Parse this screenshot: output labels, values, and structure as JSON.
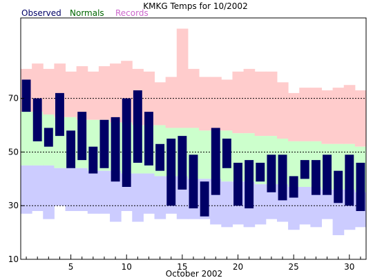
{
  "chart_data": {
    "type": "bar",
    "title": "KMKG Temps for 10/2002",
    "xlabel": "October 2002",
    "ylabel": "",
    "ylim": [
      10,
      100
    ],
    "xlim": [
      0.5,
      31.5
    ],
    "yticks": [
      10,
      30,
      50,
      70
    ],
    "xticks": [
      5,
      10,
      15,
      20,
      25,
      30
    ],
    "grid": "dashed horizontal at 30, 50, 70",
    "legend_placement": "top-left",
    "legend": [
      {
        "name": "Observed",
        "color": "#000066"
      },
      {
        "name": "Normals",
        "color": "#006600"
      },
      {
        "name": "Records",
        "color": "#cc66cc"
      }
    ],
    "colors": {
      "record_band": "#ffcccc",
      "normal_band": "#ccffcc",
      "low_band": "#ccccff",
      "observed_bar": "#000066",
      "grid": "#000000",
      "frame": "#000000"
    },
    "days": [
      1,
      2,
      3,
      4,
      5,
      6,
      7,
      8,
      9,
      10,
      11,
      12,
      13,
      14,
      15,
      16,
      17,
      18,
      19,
      20,
      21,
      22,
      23,
      24,
      25,
      26,
      27,
      28,
      29,
      30,
      31
    ],
    "record_high": [
      81,
      83,
      81,
      83,
      80,
      82,
      80,
      82,
      83,
      84,
      81,
      80,
      76,
      78,
      96,
      81,
      78,
      78,
      77,
      80,
      81,
      80,
      80,
      76,
      72,
      74,
      74,
      73,
      74,
      75,
      73
    ],
    "normal_high": [
      65,
      65,
      64,
      63,
      63,
      62,
      62,
      62,
      61,
      61,
      60,
      60,
      60,
      59,
      59,
      59,
      58,
      58,
      58,
      57,
      57,
      56,
      56,
      55,
      54,
      54,
      54,
      53,
      53,
      53,
      52
    ],
    "normal_low": [
      45,
      45,
      45,
      44,
      44,
      44,
      43,
      43,
      43,
      42,
      42,
      42,
      41,
      41,
      41,
      40,
      40,
      40,
      39,
      39,
      39,
      38,
      38,
      38,
      37,
      37,
      37,
      36,
      36,
      36,
      35
    ],
    "record_low": [
      27,
      28,
      25,
      30,
      28,
      28,
      27,
      27,
      24,
      28,
      24,
      27,
      25,
      27,
      25,
      25,
      25,
      23,
      22,
      23,
      22,
      23,
      25,
      24,
      21,
      23,
      22,
      25,
      19,
      21,
      22
    ],
    "observed_high": [
      77,
      70,
      59,
      72,
      58,
      65,
      52,
      62,
      63,
      70,
      73,
      65,
      53,
      55,
      56,
      49,
      39,
      59,
      55,
      46,
      47,
      46,
      49,
      49,
      41,
      47,
      47,
      49,
      43,
      49,
      46
    ],
    "observed_low": [
      65,
      54,
      52,
      56,
      44,
      47,
      42,
      44,
      39,
      37,
      46,
      45,
      43,
      30,
      36,
      29,
      26,
      34,
      44,
      30,
      29,
      39,
      35,
      32,
      33,
      40,
      34,
      34,
      31,
      30,
      28
    ]
  }
}
